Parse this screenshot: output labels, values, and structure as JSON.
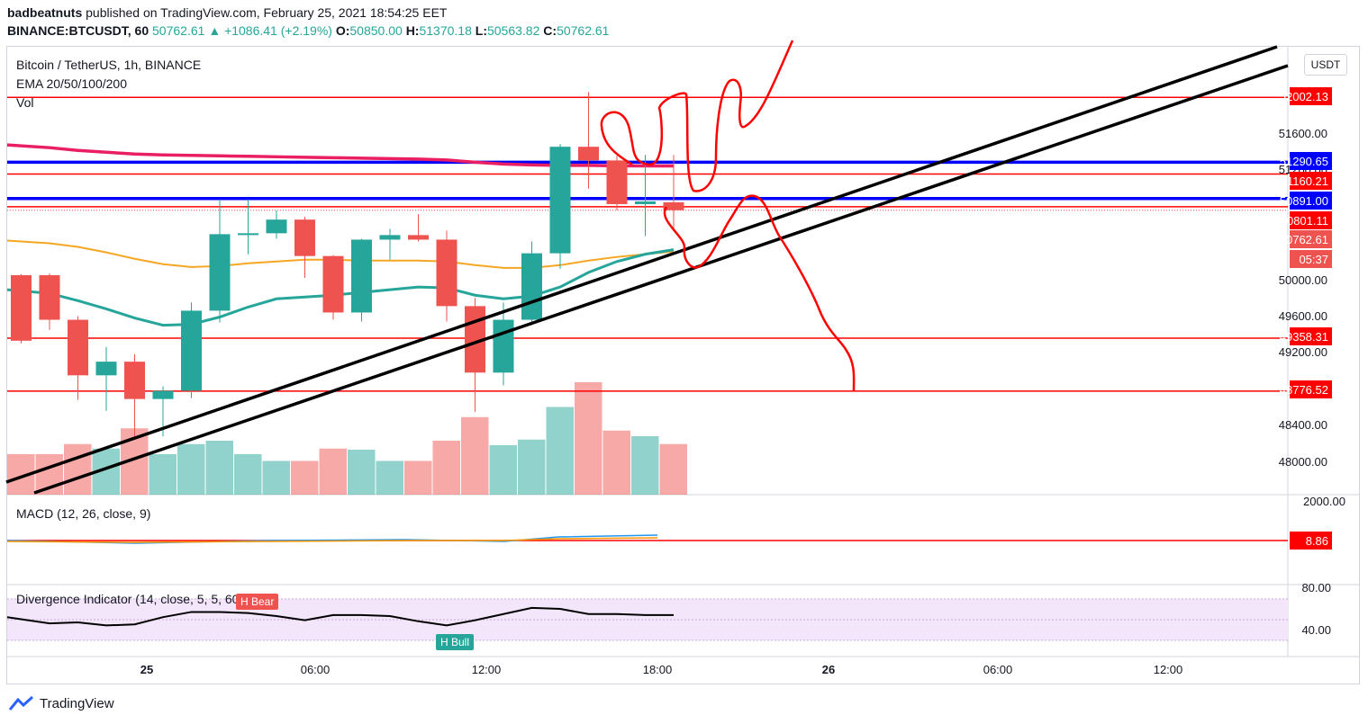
{
  "header": {
    "author": "badbeatnuts",
    "published_text": "published on TradingView.com, February 25, 2021 18:54:25 EET",
    "symbol": "BINANCE:BTCUSDT, 60",
    "last": "50762.61",
    "change": "+1086.41 (+2.19%)",
    "o_label": "O:",
    "o": "50850.00",
    "h_label": "H:",
    "h": "51370.18",
    "l_label": "L:",
    "l": "50563.82",
    "c_label": "C:",
    "c": "50762.61"
  },
  "legend": {
    "title": "Bitcoin / TetherUS, 1h, BINANCE",
    "ema": "EMA 20/50/100/200",
    "vol": "Vol"
  },
  "currency_button": "USDT",
  "macd_title": "MACD (12, 26, close, 9)",
  "div_title": "Divergence Indicator (14, close, 5, 5, 60, 5)",
  "div_bear_label": "H Bear",
  "div_bull_label": "H Bull",
  "brand": "TradingView",
  "colors": {
    "up": "#26a69a",
    "down": "#ef5350",
    "hline_red": "#ff0000",
    "hline_blue": "#0000ff",
    "ema20": "#26a69a",
    "ema50": "#f5a623",
    "ema200": "#e91e63"
  },
  "chart_data": {
    "type": "candlestick",
    "timeframe": "1h",
    "y_axis_ticks": [
      "51600.00",
      "51200.00",
      "50000.00",
      "49600.00",
      "49200.00",
      "48400.00",
      "48000.00"
    ],
    "x_axis_ticks": [
      "25",
      "06:00",
      "12:00",
      "18:00",
      "26",
      "06:00",
      "12:00"
    ],
    "macd_axis_ticks": [
      "2000.00"
    ],
    "div_axis_ticks": [
      "80.00",
      "40.00"
    ],
    "price_labels": [
      {
        "value": "52002.13",
        "color": "#ff0000"
      },
      {
        "value": "51290.65",
        "color": "#0000ff"
      },
      {
        "value": "51160.21",
        "color": "#ff0000"
      },
      {
        "value": "50891.00",
        "color": "#0000ff"
      },
      {
        "value": "50801.11",
        "color": "#ff0000"
      },
      {
        "value": "50762.61",
        "color": "#ef5350"
      },
      {
        "value": "05:37",
        "color": "#ef5350"
      },
      {
        "value": "49358.31",
        "color": "#ff0000"
      },
      {
        "value": "48776.52",
        "color": "#ff0000"
      },
      {
        "value": "8.86",
        "color": "#ff0000"
      }
    ],
    "horizontal_lines": [
      {
        "price": 52002.13,
        "color": "#ff0000"
      },
      {
        "price": 51290.65,
        "color": "#0000ff"
      },
      {
        "price": 51160.21,
        "color": "#ff0000"
      },
      {
        "price": 50891.0,
        "color": "#0000ff"
      },
      {
        "price": 50801.11,
        "color": "#ff0000"
      },
      {
        "price": 49358.31,
        "color": "#ff0000"
      },
      {
        "price": 48776.52,
        "color": "#ff0000"
      }
    ],
    "candles": [
      {
        "o": 50050,
        "h": 50060,
        "l": 49300,
        "c": 49330
      },
      {
        "o": 50050,
        "h": 50070,
        "l": 49450,
        "c": 49560
      },
      {
        "o": 49560,
        "h": 49600,
        "l": 48680,
        "c": 48950
      },
      {
        "o": 48950,
        "h": 49260,
        "l": 48560,
        "c": 49100
      },
      {
        "o": 49100,
        "h": 49180,
        "l": 48250,
        "c": 48690
      },
      {
        "o": 48690,
        "h": 48830,
        "l": 48280,
        "c": 48780
      },
      {
        "o": 48780,
        "h": 49750,
        "l": 48700,
        "c": 49660
      },
      {
        "o": 49660,
        "h": 50880,
        "l": 49530,
        "c": 50500
      },
      {
        "o": 50500,
        "h": 50880,
        "l": 50280,
        "c": 50510
      },
      {
        "o": 50510,
        "h": 50760,
        "l": 50450,
        "c": 50660
      },
      {
        "o": 50660,
        "h": 50690,
        "l": 50020,
        "c": 50260
      },
      {
        "o": 50260,
        "h": 50270,
        "l": 49560,
        "c": 49640
      },
      {
        "o": 49640,
        "h": 50450,
        "l": 49540,
        "c": 50440
      },
      {
        "o": 50440,
        "h": 50560,
        "l": 50220,
        "c": 50490
      },
      {
        "o": 50490,
        "h": 50720,
        "l": 50420,
        "c": 50440
      },
      {
        "o": 50440,
        "h": 50540,
        "l": 49540,
        "c": 49710
      },
      {
        "o": 49710,
        "h": 49800,
        "l": 48550,
        "c": 48980
      },
      {
        "o": 48980,
        "h": 49750,
        "l": 48840,
        "c": 49560
      },
      {
        "o": 49560,
        "h": 50420,
        "l": 49500,
        "c": 50290
      },
      {
        "o": 50290,
        "h": 51490,
        "l": 50120,
        "c": 51460
      },
      {
        "o": 51460,
        "h": 52060,
        "l": 51000,
        "c": 51310
      },
      {
        "o": 51310,
        "h": 51360,
        "l": 50760,
        "c": 50830
      },
      {
        "o": 50830,
        "h": 51370,
        "l": 50480,
        "c": 50860
      },
      {
        "o": 50850,
        "h": 51370,
        "l": 50564,
        "c": 50763
      }
    ],
    "volume_relative": [
      0.36,
      0.36,
      0.45,
      0.41,
      0.59,
      0.36,
      0.45,
      0.48,
      0.36,
      0.3,
      0.3,
      0.41,
      0.4,
      0.3,
      0.3,
      0.48,
      0.69,
      0.44,
      0.49,
      0.78,
      1.0,
      0.57,
      0.52,
      0.45
    ],
    "ema_20": [
      49890,
      49850,
      49770,
      49680,
      49580,
      49500,
      49510,
      49590,
      49700,
      49790,
      49810,
      49830,
      49860,
      49890,
      49920,
      49910,
      49830,
      49790,
      49820,
      49920,
      50080,
      50200,
      50280,
      50330
    ],
    "ema_50": [
      50430,
      50400,
      50360,
      50300,
      50230,
      50170,
      50140,
      50150,
      50180,
      50200,
      50220,
      50220,
      50210,
      50210,
      50210,
      50200,
      50160,
      50130,
      50130,
      50160,
      50210,
      50250,
      50280,
      50310
    ],
    "ema_200": [
      51480,
      51450,
      51420,
      51400,
      51380,
      51370,
      51365,
      51360,
      51355,
      51350,
      51345,
      51340,
      51335,
      51330,
      51325,
      51315,
      51290,
      51270,
      51260,
      51255,
      51255,
      51250,
      51250,
      51250
    ],
    "divergence_values": [
      52,
      46,
      47,
      44,
      45,
      52,
      57,
      57,
      56,
      53,
      49,
      54,
      54,
      53,
      48,
      44,
      49,
      55,
      61,
      60,
      55,
      55,
      54,
      54
    ]
  }
}
